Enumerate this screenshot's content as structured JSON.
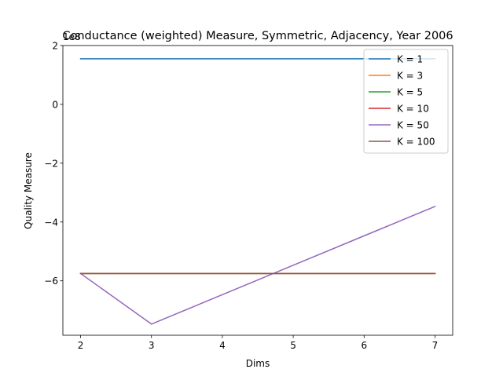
{
  "chart_data": {
    "type": "line",
    "title": "Conductance (weighted) Measure, Symmetric, Adjacency, Year 2006",
    "xlabel": "Dims",
    "ylabel": "Quality Measure",
    "y_offset_label": "1e8",
    "x": [
      2,
      3,
      4,
      5,
      6,
      7
    ],
    "xlim": [
      1.75,
      7.25
    ],
    "ylim": [
      -7.85,
      2.0
    ],
    "xticks": [
      2,
      3,
      4,
      5,
      6,
      7
    ],
    "yticks": [
      2,
      0,
      -2,
      -4,
      -6
    ],
    "ytick_labels": [
      "2",
      "0",
      "−2",
      "−4",
      "−6"
    ],
    "grid": false,
    "legend_position": "top-right",
    "series": [
      {
        "name": "K = 1",
        "color": "#1f77b4",
        "values": [
          1.55,
          1.55,
          1.55,
          1.55,
          1.55,
          1.55
        ]
      },
      {
        "name": "K = 3",
        "color": "#ff7f0e",
        "values": [
          -5.75,
          -5.75,
          -5.75,
          -5.75,
          -5.75,
          -5.75
        ]
      },
      {
        "name": "K = 5",
        "color": "#2ca02c",
        "values": [
          -5.75,
          -5.75,
          -5.75,
          -5.75,
          -5.75,
          -5.75
        ]
      },
      {
        "name": "K = 10",
        "color": "#d62728",
        "values": [
          -5.75,
          -5.75,
          -5.75,
          -5.75,
          -5.75,
          -5.75
        ]
      },
      {
        "name": "K = 50",
        "color": "#9467bd",
        "values": [
          -5.75,
          -7.47,
          -6.47,
          -5.47,
          -4.47,
          -3.47
        ]
      },
      {
        "name": "K = 100",
        "color": "#8c564b",
        "values": [
          -5.75,
          -5.75,
          -5.75,
          -5.75,
          -5.75,
          -5.75
        ]
      }
    ]
  }
}
